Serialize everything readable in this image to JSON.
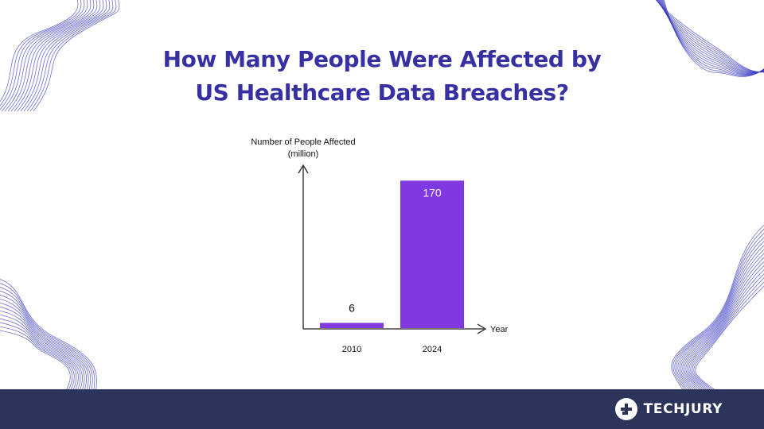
{
  "page": {
    "title_line1": "How Many People Were Affected by",
    "title_line2": "US Healthcare Data Breaches?"
  },
  "brand": {
    "name": "TECHJURY",
    "logo_icon": "techjury-logo-icon"
  },
  "colors": {
    "title": "#3730a3",
    "bar": "#8038e0",
    "footer": "#2c345c",
    "decor_lines": "#3b3ec2"
  },
  "chart_data": {
    "type": "bar",
    "categories": [
      "2010",
      "2024"
    ],
    "values": [
      6,
      170
    ],
    "data_labels": [
      "6",
      "170"
    ],
    "title": "",
    "xlabel": "Year",
    "ylabel_line1": "Number of People Affected",
    "ylabel_line2": "(million)",
    "ylim": [
      0,
      185
    ],
    "grid": false,
    "legend": "none"
  }
}
